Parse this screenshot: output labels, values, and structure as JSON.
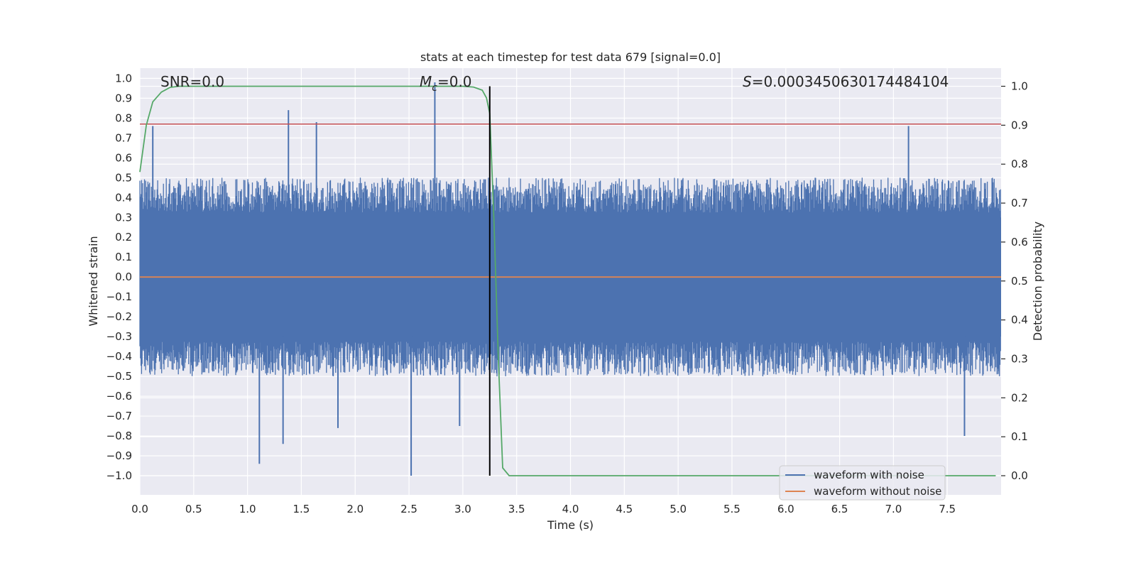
{
  "chart_data": {
    "type": "line",
    "title": "stats at each timestep for test data 679 [signal=0.0]",
    "xlabel": "Time (s)",
    "ylabel_left": "Whitened strain",
    "ylabel_right": "Detection probability",
    "xlim": [
      0.0,
      8.0
    ],
    "ylim_left": [
      -1.09,
      1.05
    ],
    "ylim_right": [
      0.0,
      1.0
    ],
    "x_ticks": [
      "0.0",
      "0.5",
      "1.0",
      "1.5",
      "2.0",
      "2.5",
      "3.0",
      "3.5",
      "4.0",
      "4.5",
      "5.0",
      "5.5",
      "6.0",
      "6.5",
      "7.0",
      "7.5"
    ],
    "y_ticks_left": [
      "1.0",
      "0.9",
      "0.8",
      "0.7",
      "0.6",
      "0.5",
      "0.4",
      "0.3",
      "0.2",
      "0.1",
      "0.0",
      "−0.1",
      "−0.2",
      "−0.3",
      "−0.4",
      "−0.5",
      "−0.6",
      "−0.7",
      "−0.8",
      "−0.9",
      "−1.0"
    ],
    "y_ticks_right": [
      "1.0",
      "0.9",
      "0.8",
      "0.7",
      "0.6",
      "0.5",
      "0.4",
      "0.3",
      "0.2",
      "0.1",
      "0.0"
    ],
    "annotations": {
      "snr": "SNR=0.0",
      "mc_symbol": "M",
      "mc_sub": "c",
      "mc_value": "=0.0",
      "s_symbol": "S",
      "s_value": "=0.0003450630174484104"
    },
    "series": [
      {
        "name": "waveform with noise",
        "axis": "left",
        "color": "#4c72b0",
        "style": "dense noise band",
        "typical_range": [
          -0.5,
          0.5
        ],
        "spikes": [
          {
            "x": 0.12,
            "y": 0.76
          },
          {
            "x": 1.38,
            "y": 0.84
          },
          {
            "x": 1.64,
            "y": 0.78
          },
          {
            "x": 2.74,
            "y": 0.98
          },
          {
            "x": 7.14,
            "y": 0.76
          },
          {
            "x": 1.11,
            "y": -0.94
          },
          {
            "x": 1.33,
            "y": -0.84
          },
          {
            "x": 2.52,
            "y": -1.0
          },
          {
            "x": 1.84,
            "y": -0.76
          },
          {
            "x": 2.97,
            "y": -0.75
          },
          {
            "x": 7.66,
            "y": -0.8
          }
        ]
      },
      {
        "name": "waveform without noise",
        "axis": "left",
        "color": "#dd8452",
        "x": [
          0.0,
          8.0
        ],
        "y": [
          0.0,
          0.0
        ]
      },
      {
        "name": "detection probability",
        "axis": "right",
        "color": "#55a868",
        "x": [
          0.0,
          0.06,
          0.12,
          0.2,
          0.28,
          0.36,
          0.5,
          1.0,
          2.0,
          3.0,
          3.1,
          3.18,
          3.22,
          3.25,
          3.29,
          3.33,
          3.37,
          3.43,
          3.5,
          5.0,
          7.95
        ],
        "y": [
          0.78,
          0.9,
          0.96,
          0.985,
          0.997,
          1.0,
          1.0,
          1.0,
          1.0,
          1.0,
          0.998,
          0.99,
          0.97,
          0.93,
          0.65,
          0.3,
          0.02,
          0.0,
          0.0,
          0.0,
          0.0
        ]
      }
    ],
    "threshold_line": {
      "axis": "left",
      "y": 0.77,
      "color": "#c44e52"
    },
    "vertical_line": {
      "x": 3.25,
      "color": "#000000"
    },
    "legend": {
      "location": "lower right",
      "entries": [
        {
          "label": "waveform with noise",
          "color": "#4c72b0"
        },
        {
          "label": "waveform without noise",
          "color": "#dd8452"
        }
      ]
    },
    "colors": {
      "plot_background": "#eaeaf2",
      "grid": "#ffffff"
    }
  }
}
